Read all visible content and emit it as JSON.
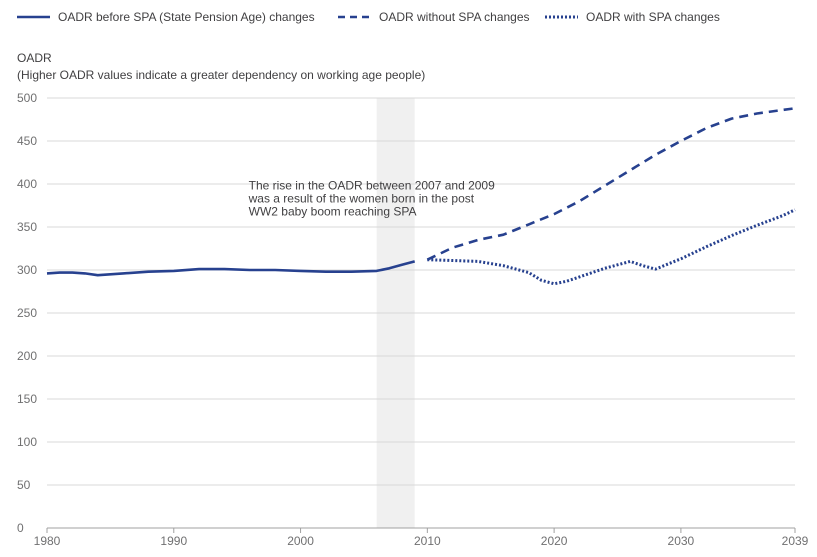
{
  "chart_data": {
    "type": "line",
    "title": "",
    "ylabel": "OADR",
    "ysublabel": "(Higher OADR values indicate a greater dependency on working age people)",
    "xlabel": "",
    "xlim": [
      1980,
      2039
    ],
    "ylim": [
      0,
      500
    ],
    "yticks": [
      0,
      50,
      100,
      150,
      200,
      250,
      300,
      350,
      400,
      450,
      500
    ],
    "xticks": [
      1980,
      1990,
      2000,
      2010,
      2020,
      2030,
      2039
    ],
    "grid": true,
    "legend_position": "top",
    "colors": {
      "series": "#27418f",
      "grid": "#d9d9d9",
      "shade": "#f0f0f0",
      "axis": "#a0a0a0"
    },
    "series": [
      {
        "name": "OADR before SPA (State Pension Age) changes",
        "style": "solid",
        "x": [
          1980,
          1981,
          1982,
          1983,
          1984,
          1985,
          1986,
          1988,
          1990,
          1992,
          1993,
          1994,
          1996,
          1998,
          2000,
          2002,
          2004,
          2006,
          2007,
          2008,
          2009
        ],
        "y": [
          296,
          297,
          297,
          296,
          294,
          295,
          296,
          298,
          299,
          301,
          301,
          301,
          300,
          300,
          299,
          298,
          298,
          299,
          302,
          306,
          310
        ]
      },
      {
        "name": "OADR without SPA changes",
        "style": "dashed",
        "x": [
          2010,
          2012,
          2014,
          2016,
          2018,
          2020,
          2022,
          2024,
          2026,
          2028,
          2030,
          2032,
          2034,
          2036,
          2038,
          2039
        ],
        "y": [
          312,
          326,
          335,
          341,
          353,
          365,
          380,
          398,
          416,
          434,
          450,
          465,
          476,
          482,
          486,
          488
        ]
      },
      {
        "name": "OADR with SPA changes",
        "style": "dotted",
        "x": [
          2010,
          2012,
          2014,
          2016,
          2018,
          2019,
          2020,
          2021,
          2022,
          2024,
          2026,
          2027,
          2028,
          2030,
          2032,
          2034,
          2036,
          2038,
          2039
        ],
        "y": [
          312,
          311,
          310,
          305,
          297,
          288,
          284,
          287,
          292,
          302,
          310,
          305,
          301,
          313,
          327,
          340,
          352,
          363,
          370
        ]
      }
    ],
    "shaded_region": {
      "x_start": 2006,
      "x_end": 2009
    },
    "annotation": {
      "x": 2006,
      "y": 390,
      "lines": [
        "The rise in the OADR between 2007 and 2009",
        "was a result of the women born in the post",
        "WW2 baby boom reaching SPA"
      ]
    }
  }
}
